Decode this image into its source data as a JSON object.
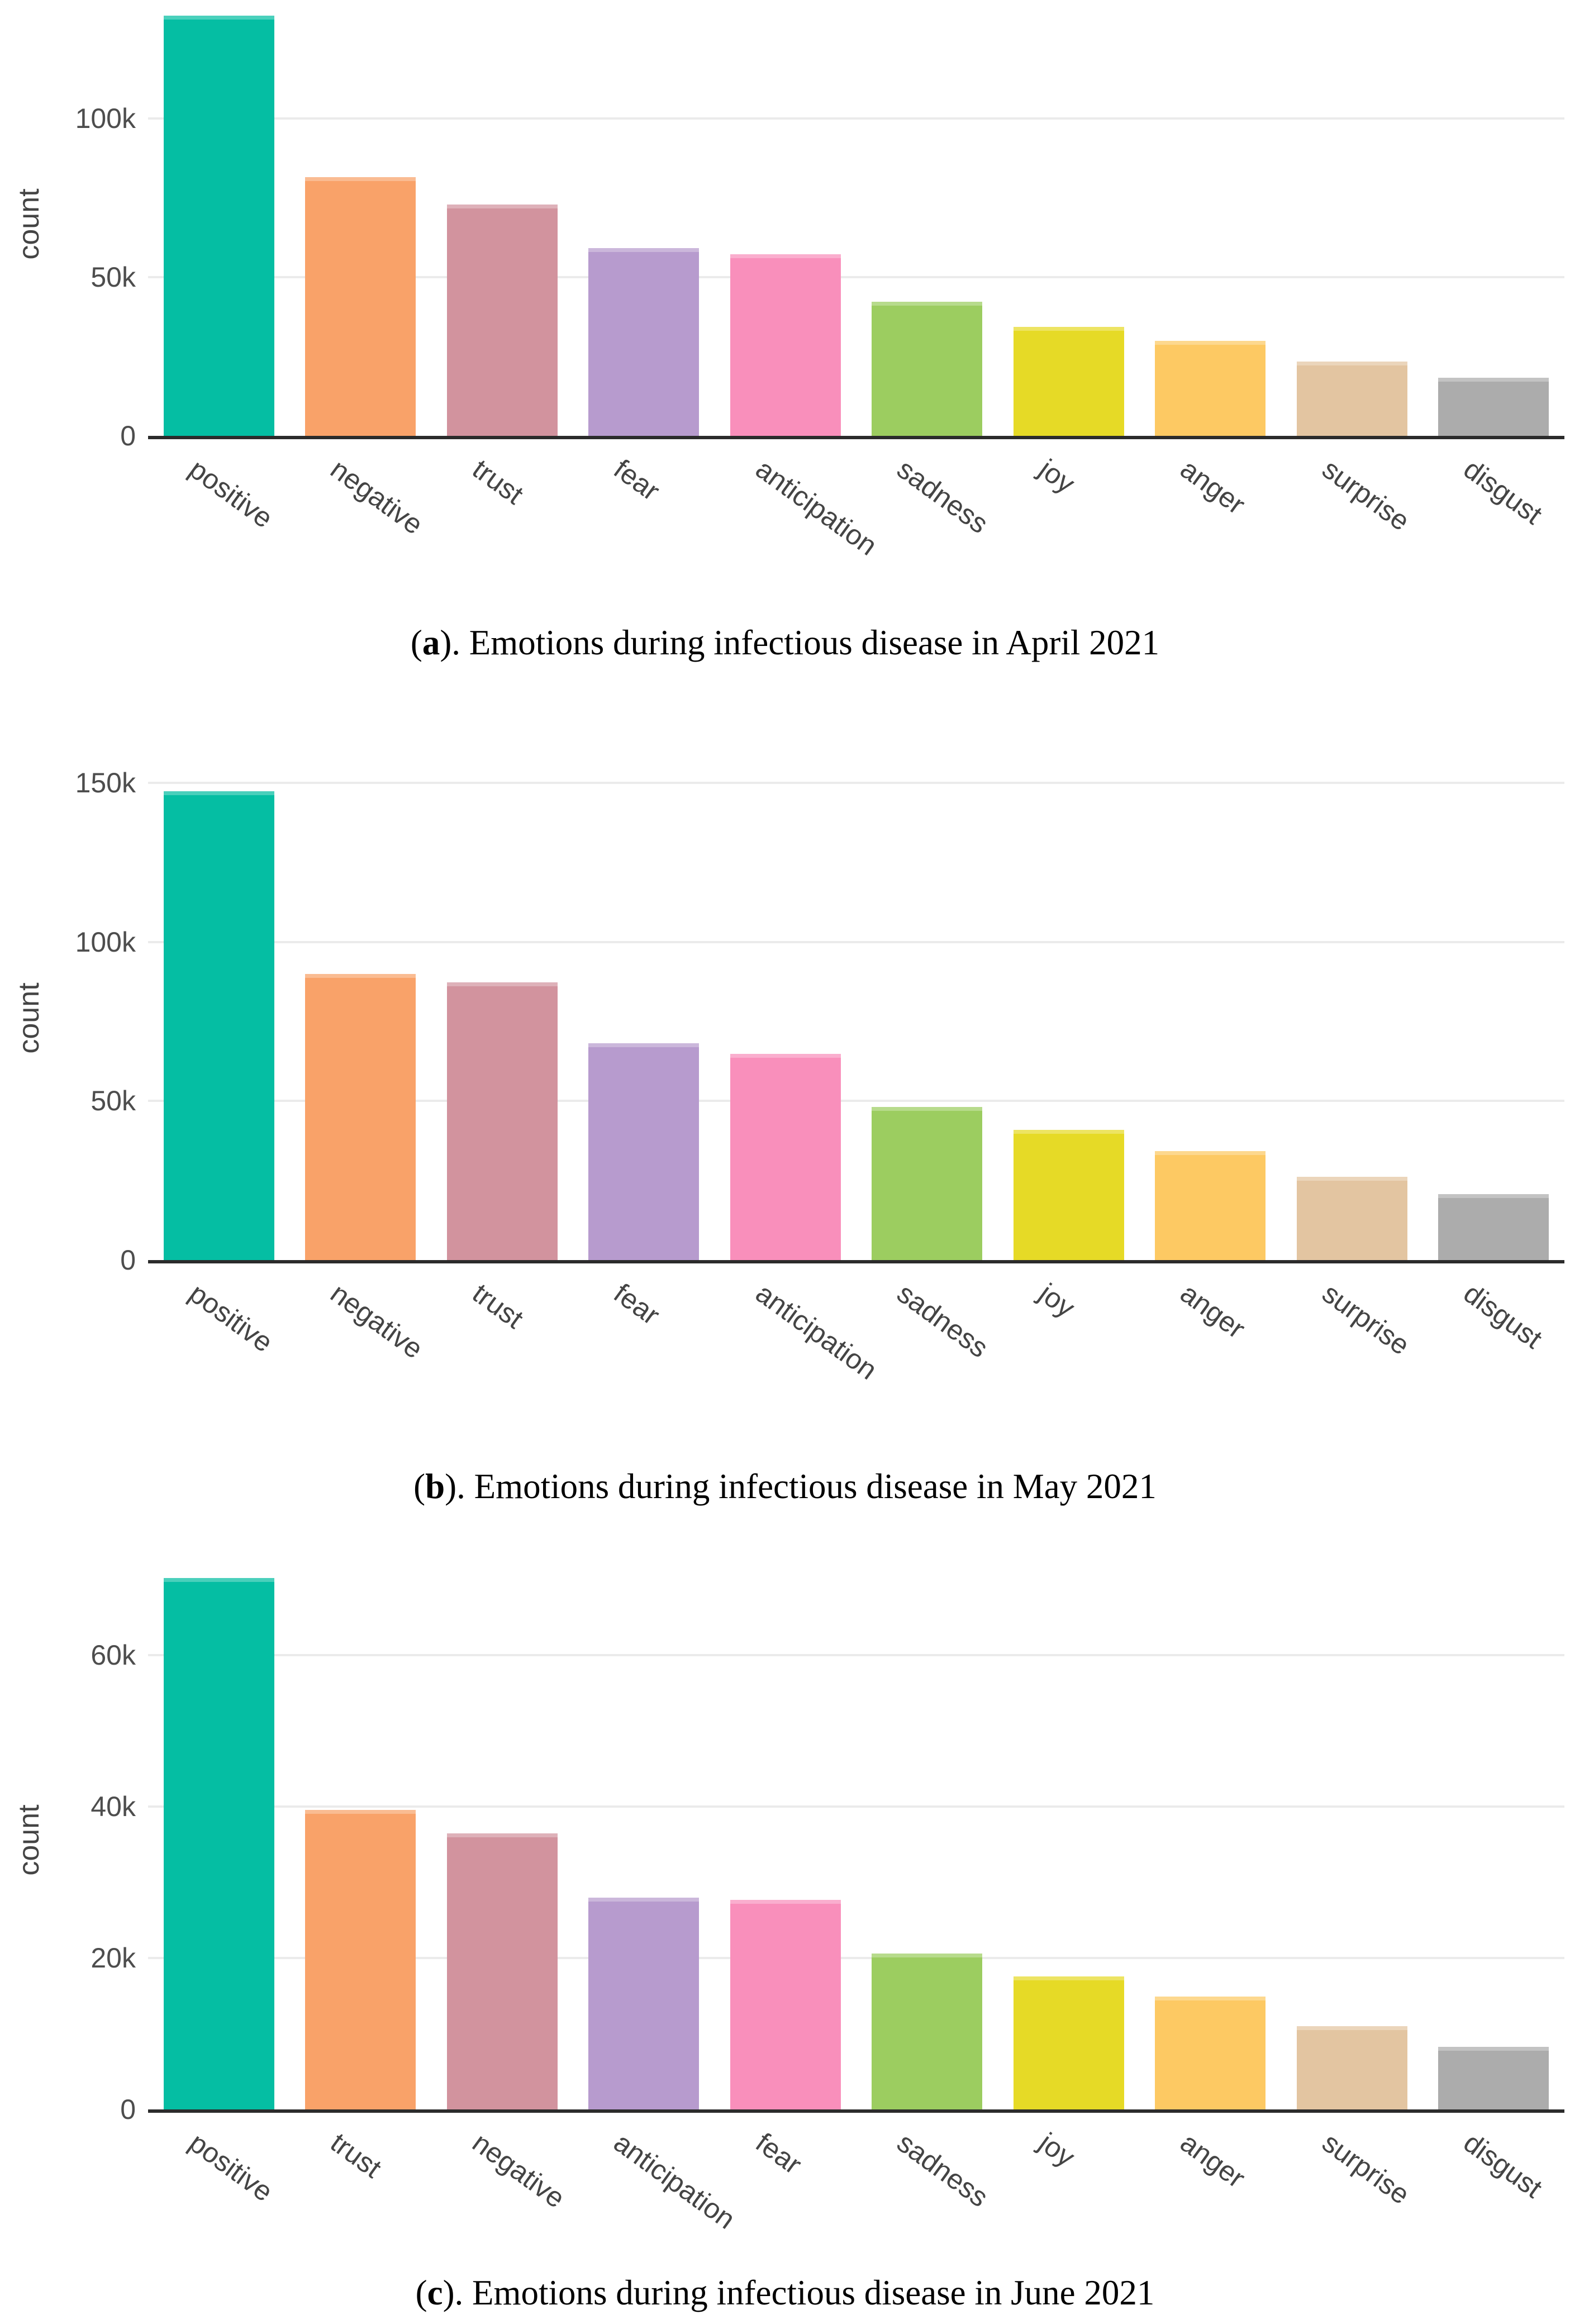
{
  "page": {
    "background": "#ffffff"
  },
  "style": {
    "palette": [
      "#05BEA3",
      "#F9A269",
      "#D2939E",
      "#B79BCE",
      "#F98FBB",
      "#9CCD60",
      "#E6DA26",
      "#FDC963",
      "#E3C5A1",
      "#ACACAC"
    ],
    "grid_color": "#ebebeb",
    "axis_line_color": "#2b2b2b",
    "tick_label_color": "#4d4d4d",
    "category_label_color": "#444444"
  },
  "chart_data": [
    {
      "id": "a",
      "type": "bar",
      "title": "(a). Emotions during infectious disease in April 2021",
      "caption": {
        "open": "(",
        "letter": "a",
        "rest": "). Emotions during infectious disease in April 2021"
      },
      "xlabel": "",
      "ylabel": "count",
      "categories": [
        "positive",
        "negative",
        "trust",
        "fear",
        "anticipation",
        "sadness",
        "joy",
        "anger",
        "surprise",
        "disgust"
      ],
      "values": [
        132500,
        81500,
        73000,
        59200,
        57300,
        42300,
        34300,
        30000,
        23500,
        18300
      ],
      "yticks": [
        {
          "value": 0,
          "label": "0"
        },
        {
          "value": 50000,
          "label": "50k"
        },
        {
          "value": 100000,
          "label": "100k"
        }
      ],
      "ylim": [
        0,
        133500
      ],
      "grid": true,
      "legend": "none",
      "tick_angle_deg": 36
    },
    {
      "id": "b",
      "type": "bar",
      "title": "(b). Emotions during infectious disease in May 2021",
      "caption": {
        "open": "(",
        "letter": "b",
        "rest": "). Emotions during infectious disease in May 2021"
      },
      "xlabel": "",
      "ylabel": "count",
      "categories": [
        "positive",
        "negative",
        "trust",
        "fear",
        "anticipation",
        "sadness",
        "joy",
        "anger",
        "surprise",
        "disgust"
      ],
      "values": [
        147500,
        90000,
        87300,
        68200,
        64800,
        48100,
        41000,
        34300,
        26200,
        20700
      ],
      "yticks": [
        {
          "value": 0,
          "label": "0"
        },
        {
          "value": 50000,
          "label": "50k"
        },
        {
          "value": 100000,
          "label": "100k"
        },
        {
          "value": 150000,
          "label": "150k"
        }
      ],
      "ylim": [
        0,
        152000
      ],
      "grid": true,
      "legend": "none",
      "tick_angle_deg": 36
    },
    {
      "id": "c",
      "type": "bar",
      "title": "(c). Emotions during infectious disease in June 2021",
      "caption": {
        "open": "(",
        "letter": "c",
        "rest": "). Emotions during infectious disease in June 2021"
      },
      "xlabel": "",
      "ylabel": "count",
      "categories": [
        "positive",
        "trust",
        "negative",
        "anticipation",
        "fear",
        "sadness",
        "joy",
        "anger",
        "surprise",
        "disgust"
      ],
      "values": [
        70200,
        39600,
        36500,
        28000,
        27700,
        20600,
        17600,
        14900,
        11000,
        8300
      ],
      "yticks": [
        {
          "value": 0,
          "label": "0"
        },
        {
          "value": 20000,
          "label": "20k"
        },
        {
          "value": 40000,
          "label": "40k"
        },
        {
          "value": 60000,
          "label": "60k"
        }
      ],
      "ylim": [
        0,
        71100
      ],
      "grid": true,
      "legend": "none",
      "tick_angle_deg": 36
    }
  ]
}
